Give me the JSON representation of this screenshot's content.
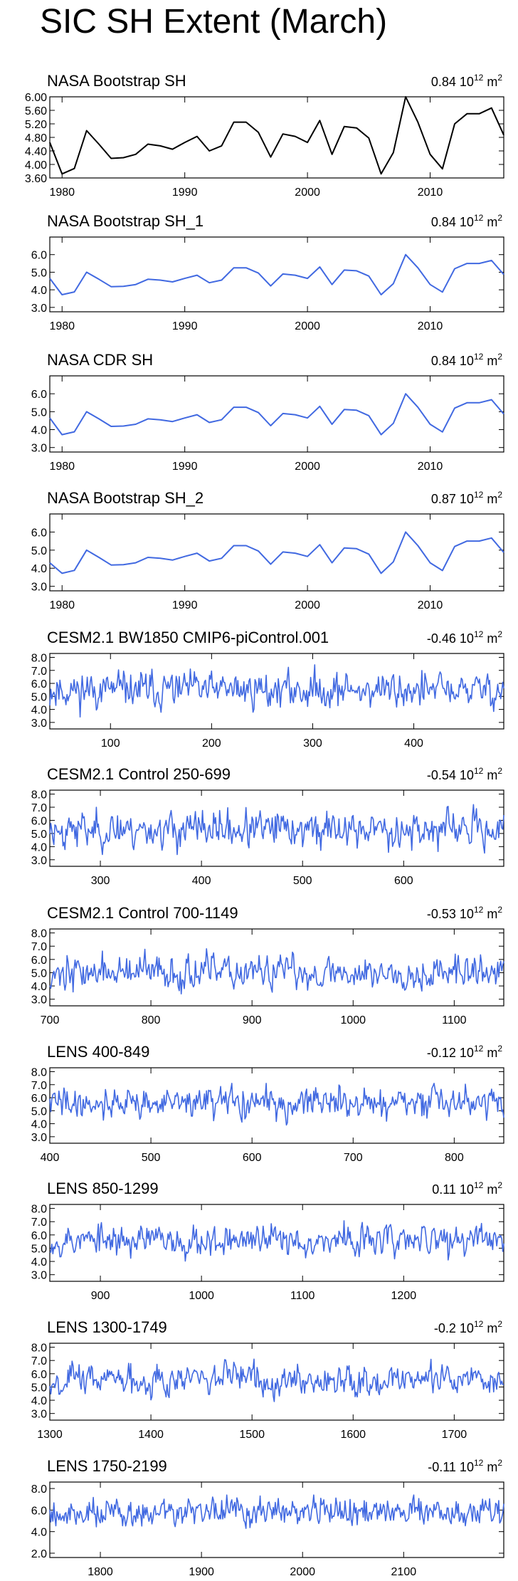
{
  "title": "SIC SH Extent (March)",
  "chart_data": [
    {
      "type": "line",
      "title": "NASA Bootstrap SH",
      "trend": "0.84",
      "units": "10^12 m^2",
      "color": "#000000",
      "x": [
        1979,
        1980,
        1981,
        1982,
        1983,
        1984,
        1985,
        1986,
        1987,
        1988,
        1989,
        1990,
        1991,
        1992,
        1993,
        1994,
        1995,
        1996,
        1997,
        1998,
        1999,
        2000,
        2001,
        2002,
        2003,
        2004,
        2005,
        2006,
        2007,
        2008,
        2009,
        2010,
        2011,
        2012,
        2013,
        2014,
        2015,
        2016
      ],
      "values": [
        4.65,
        3.72,
        3.88,
        5.0,
        4.6,
        4.18,
        4.2,
        4.3,
        4.6,
        4.55,
        4.45,
        4.65,
        4.83,
        4.4,
        4.55,
        5.25,
        5.25,
        4.95,
        4.22,
        4.9,
        4.83,
        4.65,
        5.3,
        4.3,
        5.12,
        5.08,
        4.78,
        3.72,
        4.35,
        6.0,
        5.25,
        4.3,
        3.87,
        5.2,
        5.5,
        5.5,
        5.67,
        4.87
      ],
      "xlim": [
        1979,
        2016
      ],
      "ylim": [
        3.6,
        6.0
      ],
      "xticks": [
        1980,
        1990,
        2000,
        2010
      ],
      "yticks": [
        3.6,
        4.0,
        4.4,
        4.8,
        5.2,
        5.6,
        6.0
      ],
      "yticklabels": [
        "3.60",
        "4.00",
        "4.40",
        "4.80",
        "5.20",
        "5.60",
        "6.00"
      ]
    },
    {
      "type": "line",
      "title": "NASA Bootstrap SH_1",
      "trend": "0.84",
      "units": "10^12 m^2",
      "color": "#4169e1",
      "x": [
        1979,
        1980,
        1981,
        1982,
        1983,
        1984,
        1985,
        1986,
        1987,
        1988,
        1989,
        1990,
        1991,
        1992,
        1993,
        1994,
        1995,
        1996,
        1997,
        1998,
        1999,
        2000,
        2001,
        2002,
        2003,
        2004,
        2005,
        2006,
        2007,
        2008,
        2009,
        2010,
        2011,
        2012,
        2013,
        2014,
        2015,
        2016
      ],
      "values": [
        4.65,
        3.72,
        3.88,
        5.0,
        4.6,
        4.18,
        4.2,
        4.3,
        4.6,
        4.55,
        4.45,
        4.65,
        4.83,
        4.4,
        4.55,
        5.25,
        5.25,
        4.95,
        4.22,
        4.9,
        4.83,
        4.65,
        5.3,
        4.3,
        5.12,
        5.08,
        4.78,
        3.72,
        4.35,
        6.0,
        5.25,
        4.3,
        3.87,
        5.2,
        5.5,
        5.5,
        5.67,
        4.87
      ],
      "xlim": [
        1979,
        2016
      ],
      "ylim": [
        2.75,
        7.0
      ],
      "xticks": [
        1980,
        1990,
        2000,
        2010
      ],
      "yticks": [
        3,
        4,
        5,
        6
      ],
      "yticklabels": [
        "3.0",
        "4.0",
        "5.0",
        "6.0"
      ]
    },
    {
      "type": "line",
      "title": "NASA CDR SH",
      "trend": "0.84",
      "units": "10^12 m^2",
      "color": "#4169e1",
      "x": [
        1979,
        1980,
        1981,
        1982,
        1983,
        1984,
        1985,
        1986,
        1987,
        1988,
        1989,
        1990,
        1991,
        1992,
        1993,
        1994,
        1995,
        1996,
        1997,
        1998,
        1999,
        2000,
        2001,
        2002,
        2003,
        2004,
        2005,
        2006,
        2007,
        2008,
        2009,
        2010,
        2011,
        2012,
        2013,
        2014,
        2015,
        2016
      ],
      "values": [
        4.65,
        3.72,
        3.88,
        5.0,
        4.6,
        4.18,
        4.2,
        4.3,
        4.6,
        4.55,
        4.45,
        4.65,
        4.83,
        4.4,
        4.55,
        5.25,
        5.25,
        4.95,
        4.22,
        4.9,
        4.83,
        4.65,
        5.3,
        4.3,
        5.12,
        5.08,
        4.78,
        3.72,
        4.35,
        6.0,
        5.25,
        4.3,
        3.87,
        5.2,
        5.5,
        5.5,
        5.67,
        4.87
      ],
      "xlim": [
        1979,
        2016
      ],
      "ylim": [
        2.75,
        7.0
      ],
      "xticks": [
        1980,
        1990,
        2000,
        2010
      ],
      "yticks": [
        3,
        4,
        5,
        6
      ],
      "yticklabels": [
        "3.0",
        "4.0",
        "5.0",
        "6.0"
      ]
    },
    {
      "type": "line",
      "title": "NASA Bootstrap SH_2",
      "trend": "0.87",
      "units": "10^12 m^2",
      "color": "#4169e1",
      "x": [
        1979,
        1980,
        1981,
        1982,
        1983,
        1984,
        1985,
        1986,
        1987,
        1988,
        1989,
        1990,
        1991,
        1992,
        1993,
        1994,
        1995,
        1996,
        1997,
        1998,
        1999,
        2000,
        2001,
        2002,
        2003,
        2004,
        2005,
        2006,
        2007,
        2008,
        2009,
        2010,
        2011,
        2012,
        2013,
        2014,
        2015,
        2016
      ],
      "values": [
        4.3,
        3.72,
        3.88,
        5.0,
        4.6,
        4.18,
        4.2,
        4.3,
        4.6,
        4.55,
        4.45,
        4.65,
        4.83,
        4.4,
        4.55,
        5.25,
        5.25,
        4.95,
        4.22,
        4.9,
        4.83,
        4.65,
        5.3,
        4.3,
        5.12,
        5.08,
        4.78,
        3.72,
        4.35,
        6.0,
        5.25,
        4.3,
        3.87,
        5.2,
        5.5,
        5.5,
        5.67,
        4.87
      ],
      "xlim": [
        1979,
        2016
      ],
      "ylim": [
        2.75,
        7.0
      ],
      "xticks": [
        1980,
        1990,
        2000,
        2010
      ],
      "yticks": [
        3,
        4,
        5,
        6
      ],
      "yticklabels": [
        "3.0",
        "4.0",
        "5.0",
        "6.0"
      ]
    },
    {
      "type": "line",
      "title": "CESM2.1 BW1850 CMIP6-piControl.001",
      "trend": "-0.46",
      "units": "10^12 m^2",
      "color": "#4169e1",
      "x_start": 40,
      "x_end": 489,
      "mean": 5.5,
      "std": 0.7,
      "min_value": 3.3,
      "max_value": 7.5,
      "seed": 11,
      "xlim": [
        40,
        489
      ],
      "ylim": [
        2.5,
        8.3
      ],
      "xticks": [
        100,
        200,
        300,
        400
      ],
      "yticks": [
        3,
        4,
        5,
        6,
        7,
        8
      ],
      "yticklabels": [
        "3.0",
        "4.0",
        "5.0",
        "6.0",
        "7.0",
        "8.0"
      ]
    },
    {
      "type": "line",
      "title": "CESM2.1 Control 250-699",
      "trend": "-0.54",
      "units": "10^12 m^2",
      "color": "#4169e1",
      "x_start": 250,
      "x_end": 699,
      "mean": 5.3,
      "std": 0.7,
      "min_value": 3.4,
      "max_value": 7.2,
      "seed": 23,
      "xlim": [
        250,
        699
      ],
      "ylim": [
        2.5,
        8.3
      ],
      "xticks": [
        300,
        400,
        500,
        600
      ],
      "yticks": [
        3,
        4,
        5,
        6,
        7,
        8
      ],
      "yticklabels": [
        "3.0",
        "4.0",
        "5.0",
        "6.0",
        "7.0",
        "8.0"
      ]
    },
    {
      "type": "line",
      "title": "CESM2.1 Control 700-1149",
      "trend": "-0.53",
      "units": "10^12 m^2",
      "color": "#4169e1",
      "x_start": 700,
      "x_end": 1149,
      "mean": 5.0,
      "std": 0.65,
      "min_value": 3.4,
      "max_value": 7.0,
      "seed": 37,
      "xlim": [
        700,
        1149
      ],
      "ylim": [
        2.5,
        8.3
      ],
      "xticks": [
        700,
        800,
        900,
        1000,
        1100
      ],
      "yticks": [
        3,
        4,
        5,
        6,
        7,
        8
      ],
      "yticklabels": [
        "3.0",
        "4.0",
        "5.0",
        "6.0",
        "7.0",
        "8.0"
      ]
    },
    {
      "type": "line",
      "title": "LENS 400-849",
      "trend": "-0.12",
      "units": "10^12 m^2",
      "color": "#4169e1",
      "x_start": 400,
      "x_end": 849,
      "mean": 5.6,
      "std": 0.6,
      "min_value": 3.9,
      "max_value": 7.1,
      "seed": 41,
      "xlim": [
        400,
        849
      ],
      "ylim": [
        2.5,
        8.3
      ],
      "xticks": [
        400,
        500,
        600,
        700,
        800
      ],
      "yticks": [
        3,
        4,
        5,
        6,
        7,
        8
      ],
      "yticklabels": [
        "3.0",
        "4.0",
        "5.0",
        "6.0",
        "7.0",
        "8.0"
      ]
    },
    {
      "type": "line",
      "title": "LENS 850-1299",
      "trend": "0.11",
      "units": "10^12 m^2",
      "color": "#4169e1",
      "x_start": 850,
      "x_end": 1299,
      "mean": 5.6,
      "std": 0.6,
      "min_value": 3.5,
      "max_value": 7.2,
      "seed": 53,
      "xlim": [
        850,
        1299
      ],
      "ylim": [
        2.5,
        8.3
      ],
      "xticks": [
        900,
        1000,
        1100,
        1200
      ],
      "yticks": [
        3,
        4,
        5,
        6,
        7,
        8
      ],
      "yticklabels": [
        "3.0",
        "4.0",
        "5.0",
        "6.0",
        "7.0",
        "8.0"
      ]
    },
    {
      "type": "line",
      "title": "LENS 1300-1749",
      "trend": "-0.2",
      "units": "10^12 m^2",
      "color": "#4169e1",
      "x_start": 1300,
      "x_end": 1749,
      "mean": 5.6,
      "std": 0.6,
      "min_value": 3.9,
      "max_value": 7.1,
      "seed": 67,
      "xlim": [
        1300,
        1749
      ],
      "ylim": [
        2.5,
        8.3
      ],
      "xticks": [
        1300,
        1400,
        1500,
        1600,
        1700
      ],
      "yticks": [
        3,
        4,
        5,
        6,
        7,
        8
      ],
      "yticklabels": [
        "3.0",
        "4.0",
        "5.0",
        "6.0",
        "7.0",
        "8.0"
      ]
    },
    {
      "type": "line",
      "title": "LENS 1750-2199",
      "trend": "-0.11",
      "units": "10^12 m^2",
      "color": "#4169e1",
      "x_start": 1750,
      "x_end": 2199,
      "mean": 5.8,
      "std": 0.7,
      "min_value": 2.4,
      "max_value": 7.4,
      "seed": 79,
      "xlim": [
        1750,
        2199
      ],
      "ylim": [
        1.6,
        8.6
      ],
      "xticks": [
        1800,
        1900,
        2000,
        2100
      ],
      "yticks": [
        2,
        4,
        6,
        8
      ],
      "yticklabels": [
        "2.0",
        "4.0",
        "6.0",
        "8.0"
      ]
    }
  ]
}
